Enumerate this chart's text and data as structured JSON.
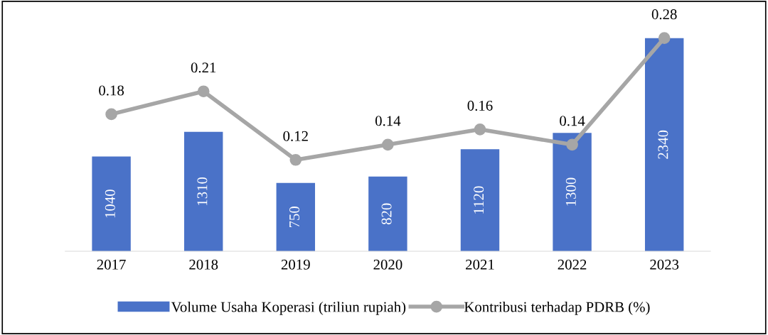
{
  "chart_data": {
    "type": "bar",
    "categories": [
      "2017",
      "2018",
      "2019",
      "2020",
      "2021",
      "2022",
      "2023"
    ],
    "series": [
      {
        "name": "Volume Usaha Koperasi (triliun rupiah)",
        "color": "#4a72c8",
        "values": [
          1040,
          1310,
          750,
          820,
          1120,
          1300,
          2340
        ]
      },
      {
        "name": "Kontribusi terhadap PDRB (%)",
        "type": "line",
        "axis": "y2",
        "color": "#a6a6a6",
        "marker": "circle",
        "values": [
          0.18,
          0.21,
          0.12,
          0.14,
          0.16,
          0.14,
          0.28
        ]
      }
    ],
    "data_labels": true,
    "legend": "bottom",
    "grid": false,
    "tick_labels": "x"
  }
}
